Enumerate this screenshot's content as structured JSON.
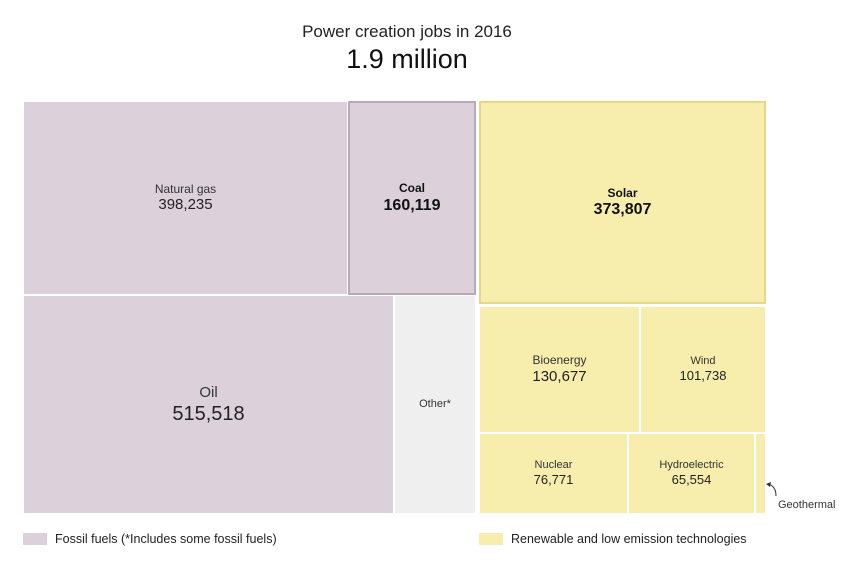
{
  "chart_data": {
    "type": "treemap",
    "title": "Power creation jobs in 2016",
    "subtitle": "1.9 million",
    "items": [
      {
        "id": "natural-gas",
        "name": "Natural gas",
        "value": 398235,
        "value_label": "398,235",
        "group": "fossil",
        "highlight": false
      },
      {
        "id": "coal",
        "name": "Coal",
        "value": 160119,
        "value_label": "160,119",
        "group": "fossil",
        "highlight": true
      },
      {
        "id": "oil",
        "name": "Oil",
        "value": 515518,
        "value_label": "515,518",
        "group": "fossil",
        "highlight": false
      },
      {
        "id": "other",
        "name": "Other*",
        "value": null,
        "value_label": "",
        "group": "other",
        "highlight": false
      },
      {
        "id": "solar",
        "name": "Solar",
        "value": 373807,
        "value_label": "373,807",
        "group": "renewable",
        "highlight": true
      },
      {
        "id": "bioenergy",
        "name": "Bioenergy",
        "value": 130677,
        "value_label": "130,677",
        "group": "renewable",
        "highlight": false
      },
      {
        "id": "wind",
        "name": "Wind",
        "value": 101738,
        "value_label": "101,738",
        "group": "renewable",
        "highlight": false
      },
      {
        "id": "nuclear",
        "name": "Nuclear",
        "value": 76771,
        "value_label": "76,771",
        "group": "renewable",
        "highlight": false
      },
      {
        "id": "hydroelectric",
        "name": "Hydroelectric",
        "value": 65554,
        "value_label": "65,554",
        "group": "renewable",
        "highlight": false
      },
      {
        "id": "geothermal",
        "name": "Geothermal",
        "value": null,
        "value_label": "",
        "group": "renewable",
        "highlight": false
      }
    ],
    "legend": [
      {
        "label": "Fossil fuels (*Includes some fossil fuels)",
        "color": "#dcd1db"
      },
      {
        "label": "Renewable and low emission technologies",
        "color": "#f7eeae"
      }
    ],
    "colors": {
      "fossil": "#dcd1db",
      "renewable": "#f7eeae",
      "other": "#efefef"
    }
  }
}
